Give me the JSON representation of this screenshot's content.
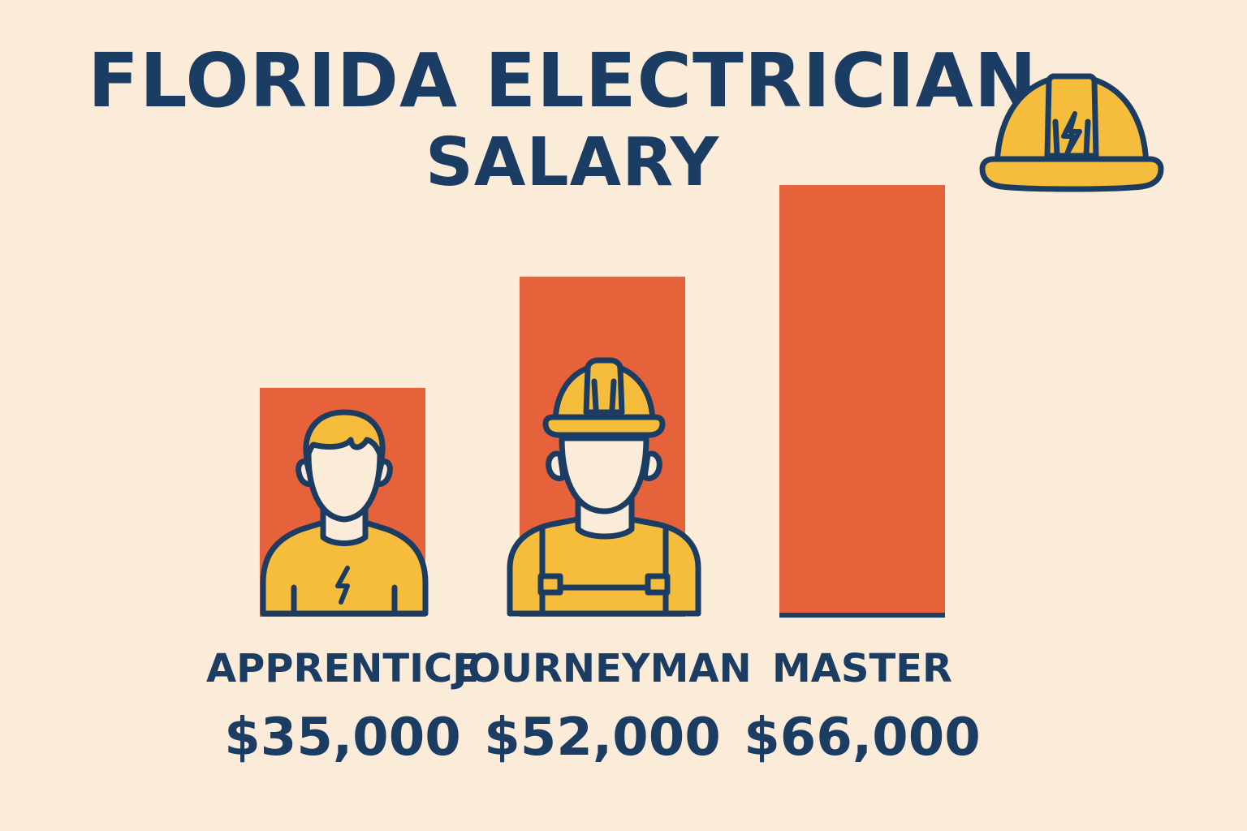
{
  "chart_data": {
    "type": "bar",
    "title_line1": "FLORIDA ELECTRICIAN",
    "title_line2": "SALARY",
    "categories": [
      "APPRENTICE",
      "JOURNEYMAN",
      "MASTER"
    ],
    "values": [
      35000,
      52000,
      66000
    ],
    "value_labels": [
      "$35,000",
      "$52,000",
      "$66,000"
    ],
    "xlabel": "",
    "ylabel": "",
    "ylim": [
      0,
      75000
    ],
    "grid": false,
    "legend": "none"
  },
  "colors": {
    "background": "#fbebd9",
    "bar": "#e5623a",
    "text": "#1c3d63",
    "accent": "#f6bd3c"
  },
  "icons": {
    "header": "hardhat-bolt-icon",
    "apprentice": "apprentice-worker-icon",
    "journeyman": "journeyman-worker-icon"
  }
}
